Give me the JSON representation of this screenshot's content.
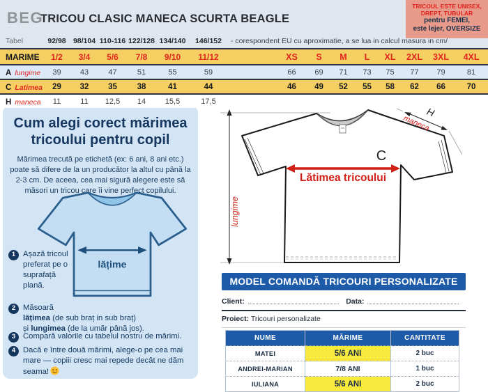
{
  "brand": "BEG",
  "title": "TRICOU CLASIC MANECA SCURTA BEAGLE",
  "badge": {
    "red_lines": [
      "TRICOUL ESTE UNISEX,",
      "DREPT, TUBULAR"
    ],
    "dark_lines": [
      "pentru FEMEI,",
      "este lejer, OVERSIZE"
    ],
    "bg_color": "#e89a8b",
    "red_color": "#e0241d",
    "dark_color": "#1c3049"
  },
  "size_table": {
    "tabel_label": "Tabel",
    "eu_ranges": [
      "92/98",
      "98/104",
      "110-116",
      "122/128",
      "134/140",
      "146/152"
    ],
    "note": "- corespondent EU cu aproximatie, a se lua in calcul masura in cm/",
    "marime_label": "MARIME",
    "child_sizes": [
      "1/2",
      "3/4",
      "5/6",
      "7/8",
      "9/10",
      "11/12"
    ],
    "adult_sizes": [
      "XS",
      "S",
      "M",
      "L",
      "XL",
      "2XL",
      "3XL",
      "4XL"
    ],
    "rows": [
      {
        "letter": "A",
        "name": "lungime",
        "bold": false,
        "child": [
          "39",
          "43",
          "47",
          "51",
          "55",
          "59"
        ],
        "adult": [
          "66",
          "69",
          "71",
          "73",
          "75",
          "77",
          "79",
          "81"
        ]
      },
      {
        "letter": "C",
        "name": "Latimea",
        "bold": true,
        "child": [
          "29",
          "32",
          "35",
          "38",
          "41",
          "44"
        ],
        "adult": [
          "46",
          "49",
          "52",
          "55",
          "58",
          "62",
          "66",
          "70"
        ]
      },
      {
        "letter": "H",
        "name": "maneca",
        "bold": false,
        "child": [
          "11",
          "11",
          "12,5",
          "14",
          "15,5",
          "17,5"
        ],
        "adult": [
          "",
          "",
          "",
          "",
          "",
          "",
          "",
          ""
        ]
      }
    ],
    "colors": {
      "yellow": "#f6cf63",
      "blue": "#dce9f8",
      "red": "#e02520"
    }
  },
  "guide": {
    "heading": "Cum alegi corect mărimea tricoului pentru copil",
    "paragraph": "Mărimea trecută pe etichetă (ex: 6 ani, 8 ani etc.) poate să difere de la un producător la altul cu până la 2-3 cm. De aceea, cea mai sigură alegere este să măsori un tricou care îi vine perfect copilului.",
    "tshirt_label": "lățime",
    "steps": [
      {
        "num": "1",
        "segments": [
          {
            "t": "Așază tricoul preferat pe o suprafață plană.",
            "b": false
          }
        ],
        "emoji": false
      },
      {
        "num": "2",
        "segments": [
          {
            "t": "Măsoară",
            "b": false,
            "br": true
          },
          {
            "t": "lățimea",
            "b": true
          },
          {
            "t": " (de sub braț in sub braț)",
            "b": false,
            "br": true
          },
          {
            "t": "și ",
            "b": false
          },
          {
            "t": "lungimea",
            "b": true
          },
          {
            "t": " (de la umăr până jos).",
            "b": false
          }
        ],
        "emoji": false
      },
      {
        "num": "3",
        "segments": [
          {
            "t": "Compară valorile cu tabelul nostru de mărimi.",
            "b": false
          }
        ],
        "emoji": false
      },
      {
        "num": "4",
        "segments": [
          {
            "t": "Dacă e între două mărimi, alege-o pe cea mai mare — copiii cresc mai repede decât ne dăm seama!",
            "b": false
          }
        ],
        "emoji": true
      }
    ]
  },
  "diagram": {
    "width_letter": "C",
    "width_label": "Lătimea tricoului",
    "sleeve_letter": "H",
    "sleeve_label": "maneca",
    "length_label": "lungime",
    "arrow_color": "#d01f17"
  },
  "order_form": {
    "title": "MODEL COMANDĂ TRICOURI PERSONALIZATE",
    "client_label": "Client:",
    "data_label": "Data:",
    "proiect_label": "Proiect:",
    "proiect_value": "Tricouri personalizate",
    "table": {
      "headers": [
        "NUME",
        "MĂRIME",
        "CANTITATE"
      ],
      "rows": [
        {
          "nume": "MATEI",
          "marime": "5/6 ANI",
          "cantitate": "2 buc",
          "highlight": true
        },
        {
          "nume": "ANDREI-MARIAN",
          "marime": "7/8 ANI",
          "cantitate": "1 buc",
          "highlight": false
        },
        {
          "nume": "IULIANA",
          "marime": "5/6 ANI",
          "cantitate": "2 buc",
          "highlight": true
        }
      ],
      "highlight_color": "#f8e93d",
      "header_color": "#1d5ba9"
    }
  }
}
